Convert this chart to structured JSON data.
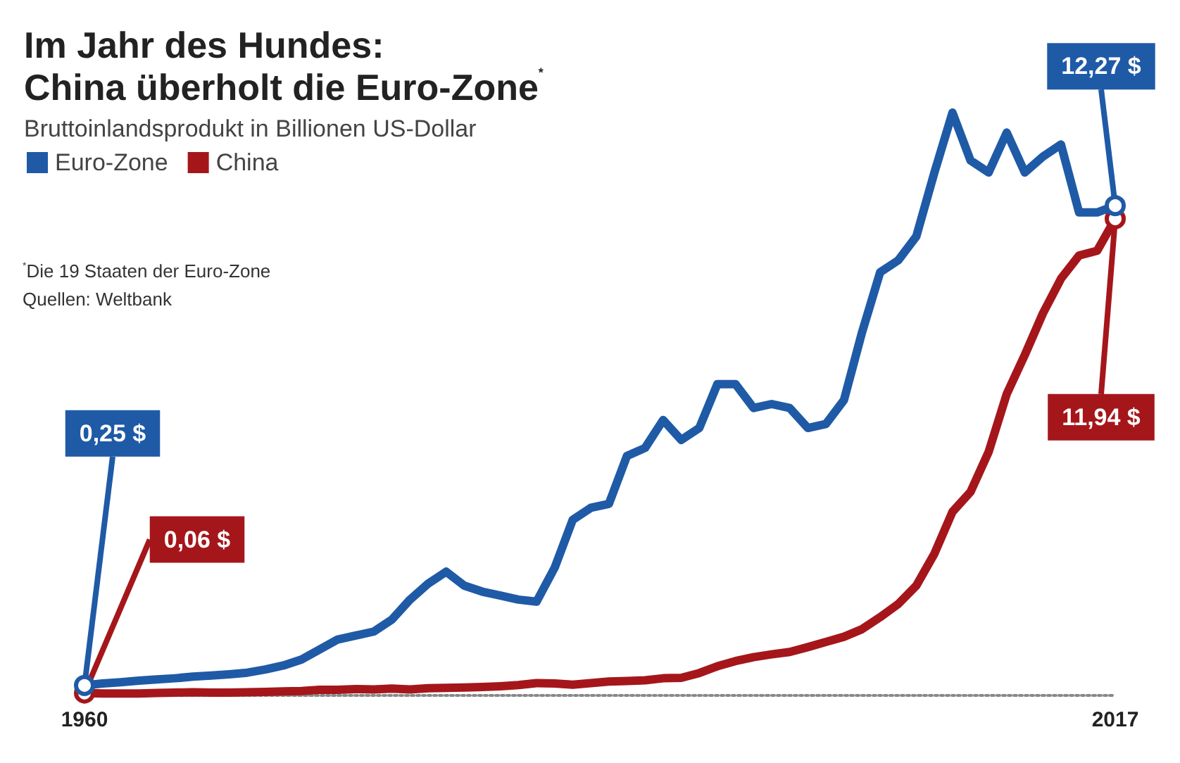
{
  "chart_data": {
    "type": "line",
    "title": "Im Jahr des Hundes:\nChina überholt die Euro-Zone$^{*}$",
    "subtitle": "Bruttoinlandsprodukt in Billionen US-Dollar",
    "annotations": [
      "$^{*}$Die 19 Staaten der Euro-Zone",
      "Quellen: Weltbank"
    ],
    "x": [
      1960,
      1961,
      1962,
      1963,
      1964,
      1965,
      1966,
      1967,
      1968,
      1969,
      1970,
      1971,
      1972,
      1973,
      1974,
      1975,
      1976,
      1977,
      1978,
      1979,
      1980,
      1981,
      1982,
      1983,
      1984,
      1985,
      1986,
      1987,
      1988,
      1989,
      1990,
      1991,
      1992,
      1993,
      1994,
      1995,
      1996,
      1997,
      1998,
      1999,
      2000,
      2001,
      2002,
      2003,
      2004,
      2005,
      2006,
      2007,
      2008,
      2009,
      2010,
      2011,
      2012,
      2013,
      2014,
      2015,
      2016,
      2017
    ],
    "xlim": [
      1960,
      2017
    ],
    "xticks": [
      1960,
      2017
    ],
    "grid": false,
    "legend": "top left",
    "series": [
      {
        "name": "Euro-Zone",
        "color": "#1f5aa6",
        "values": [
          0.25,
          0.3,
          0.33,
          0.37,
          0.4,
          0.43,
          0.47,
          0.5,
          0.53,
          0.57,
          0.65,
          0.75,
          0.9,
          1.15,
          1.4,
          1.5,
          1.6,
          1.9,
          2.4,
          2.8,
          3.1,
          2.75,
          2.6,
          2.5,
          2.4,
          2.35,
          3.2,
          4.4,
          4.7,
          4.8,
          6.0,
          6.2,
          6.9,
          6.4,
          6.7,
          7.8,
          7.8,
          7.2,
          7.3,
          7.2,
          6.7,
          6.8,
          7.4,
          9.1,
          10.6,
          10.9,
          11.5,
          13.1,
          14.6,
          13.4,
          13.1,
          14.1,
          13.1,
          13.5,
          13.8,
          12.1,
          12.1,
          12.27
        ],
        "value_labels": [
          "0,25 $",
          null,
          null,
          null,
          null,
          null,
          null,
          null,
          null,
          null,
          null,
          null,
          null,
          null,
          null,
          null,
          null,
          null,
          null,
          null,
          null,
          null,
          null,
          null,
          null,
          null,
          null,
          null,
          null,
          null,
          null,
          null,
          null,
          null,
          null,
          null,
          null,
          null,
          null,
          null,
          null,
          null,
          null,
          null,
          null,
          null,
          null,
          null,
          null,
          null,
          null,
          null,
          null,
          null,
          null,
          null,
          null,
          "12,27 $"
        ]
      },
      {
        "name": "China",
        "color": "#a5161b",
        "values": [
          0.06,
          0.05,
          0.05,
          0.05,
          0.06,
          0.07,
          0.08,
          0.07,
          0.07,
          0.08,
          0.09,
          0.1,
          0.11,
          0.14,
          0.14,
          0.16,
          0.15,
          0.17,
          0.15,
          0.18,
          0.19,
          0.2,
          0.21,
          0.23,
          0.26,
          0.31,
          0.3,
          0.27,
          0.31,
          0.35,
          0.36,
          0.38,
          0.43,
          0.44,
          0.56,
          0.73,
          0.86,
          0.96,
          1.03,
          1.09,
          1.21,
          1.34,
          1.47,
          1.66,
          1.96,
          2.29,
          2.75,
          3.55,
          4.6,
          5.1,
          6.1,
          7.55,
          8.53,
          9.57,
          10.44,
          11.02,
          11.14,
          11.94
        ],
        "value_labels": [
          "0,06 $",
          null,
          null,
          null,
          null,
          null,
          null,
          null,
          null,
          null,
          null,
          null,
          null,
          null,
          null,
          null,
          null,
          null,
          null,
          null,
          null,
          null,
          null,
          null,
          null,
          null,
          null,
          null,
          null,
          null,
          null,
          null,
          null,
          null,
          null,
          null,
          null,
          null,
          null,
          null,
          null,
          null,
          null,
          null,
          null,
          null,
          null,
          null,
          null,
          null,
          null,
          null,
          null,
          null,
          null,
          null,
          null,
          "11,94 $"
        ]
      }
    ]
  }
}
